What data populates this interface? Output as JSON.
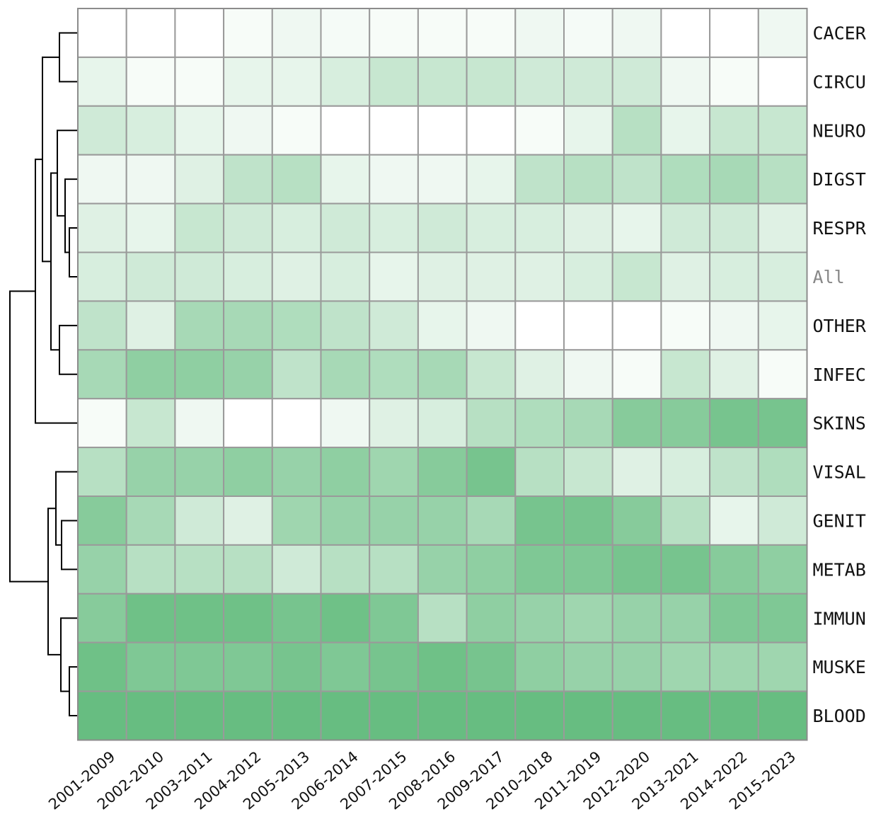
{
  "chart_data": {
    "type": "heatmap",
    "color_scale": {
      "low": "#ffffff",
      "high": "#5fba7a"
    },
    "columns": [
      "2001-2009",
      "2002-2010",
      "2003-2011",
      "2004-2012",
      "2005-2013",
      "2006-2014",
      "2007-2015",
      "2008-2016",
      "2009-2017",
      "2010-2018",
      "2011-2019",
      "2012-2020",
      "2013-2021",
      "2014-2022",
      "2015-2023"
    ],
    "rows": [
      "CACER",
      "CIRCU",
      "NEURO",
      "DIGST",
      "RESPR",
      "All",
      "OTHER",
      "INFEC",
      "SKINS",
      "VISAL",
      "GENIT",
      "METAB",
      "IMMUN",
      "MUSKE",
      "BLOOD"
    ],
    "muted_row": "All",
    "values": [
      [
        0.0,
        0.0,
        0.0,
        0.05,
        0.1,
        0.06,
        0.05,
        0.05,
        0.05,
        0.1,
        0.06,
        0.1,
        0.0,
        0.0,
        0.1
      ],
      [
        0.15,
        0.05,
        0.05,
        0.15,
        0.15,
        0.25,
        0.35,
        0.35,
        0.35,
        0.3,
        0.3,
        0.3,
        0.1,
        0.05,
        0.0
      ],
      [
        0.3,
        0.25,
        0.15,
        0.1,
        0.05,
        0.0,
        0.0,
        0.0,
        0.0,
        0.05,
        0.15,
        0.45,
        0.15,
        0.35,
        0.35
      ],
      [
        0.1,
        0.1,
        0.2,
        0.4,
        0.45,
        0.15,
        0.1,
        0.1,
        0.15,
        0.4,
        0.45,
        0.4,
        0.5,
        0.55,
        0.45
      ],
      [
        0.2,
        0.15,
        0.35,
        0.3,
        0.25,
        0.3,
        0.25,
        0.3,
        0.25,
        0.25,
        0.2,
        0.15,
        0.3,
        0.3,
        0.2
      ],
      [
        0.25,
        0.3,
        0.3,
        0.25,
        0.2,
        0.25,
        0.15,
        0.2,
        0.2,
        0.2,
        0.25,
        0.35,
        0.2,
        0.25,
        0.25
      ],
      [
        0.4,
        0.2,
        0.55,
        0.55,
        0.5,
        0.4,
        0.3,
        0.15,
        0.1,
        0.0,
        0.0,
        0.0,
        0.05,
        0.1,
        0.15
      ],
      [
        0.55,
        0.7,
        0.7,
        0.65,
        0.4,
        0.55,
        0.5,
        0.55,
        0.35,
        0.2,
        0.1,
        0.05,
        0.35,
        0.2,
        0.05
      ],
      [
        0.05,
        0.35,
        0.1,
        0.0,
        0.0,
        0.1,
        0.2,
        0.25,
        0.45,
        0.5,
        0.55,
        0.75,
        0.75,
        0.85,
        0.85
      ],
      [
        0.45,
        0.65,
        0.65,
        0.7,
        0.65,
        0.7,
        0.6,
        0.75,
        0.85,
        0.45,
        0.35,
        0.2,
        0.25,
        0.4,
        0.5
      ],
      [
        0.75,
        0.55,
        0.3,
        0.2,
        0.6,
        0.65,
        0.65,
        0.65,
        0.55,
        0.85,
        0.85,
        0.75,
        0.45,
        0.15,
        0.3
      ],
      [
        0.65,
        0.45,
        0.45,
        0.45,
        0.3,
        0.45,
        0.45,
        0.65,
        0.7,
        0.8,
        0.8,
        0.85,
        0.85,
        0.75,
        0.7
      ],
      [
        0.75,
        0.9,
        0.9,
        0.9,
        0.85,
        0.9,
        0.8,
        0.45,
        0.7,
        0.65,
        0.6,
        0.65,
        0.65,
        0.8,
        0.8
      ],
      [
        0.9,
        0.8,
        0.8,
        0.8,
        0.85,
        0.8,
        0.85,
        0.9,
        0.85,
        0.7,
        0.65,
        0.65,
        0.6,
        0.6,
        0.6
      ],
      [
        0.95,
        0.95,
        0.95,
        0.95,
        0.95,
        0.95,
        0.95,
        0.95,
        0.95,
        0.95,
        0.95,
        0.95,
        0.95,
        0.95,
        0.95
      ]
    ]
  }
}
